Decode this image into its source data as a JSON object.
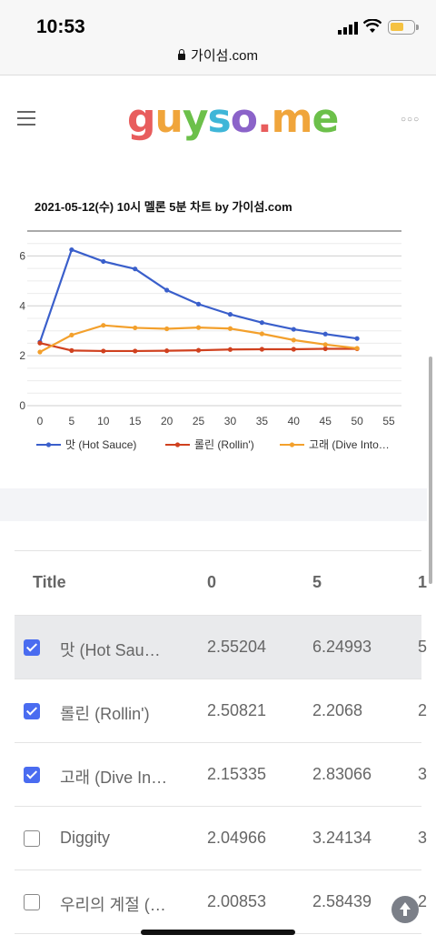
{
  "status": {
    "time": "10:53"
  },
  "browser": {
    "url": "가이섬.com"
  },
  "site": {
    "logo": [
      "g",
      "u",
      "y",
      "s",
      "o",
      ".",
      "m",
      "e"
    ]
  },
  "chart_data": {
    "type": "line",
    "title": "2021-05-12(수) 10시 멜론 5분 차트 by 가이섬.com",
    "xlabel": "",
    "ylabel": "",
    "x": [
      0,
      5,
      10,
      15,
      20,
      25,
      30,
      35,
      40,
      45,
      50
    ],
    "xticks": [
      "0",
      "5",
      "10",
      "15",
      "20",
      "25",
      "30",
      "35",
      "40",
      "45",
      "50",
      "55"
    ],
    "yticks": [
      "0",
      "2",
      "4",
      "6"
    ],
    "xlim": [
      -2,
      57
    ],
    "ylim": [
      0,
      7
    ],
    "grid": true,
    "legend": "bottom",
    "series": [
      {
        "name": "맛 (Hot Sauce)",
        "color": "#3a5fcb",
        "values": [
          2.55,
          6.25,
          5.78,
          5.48,
          4.63,
          4.07,
          3.66,
          3.33,
          3.06,
          2.87,
          2.69
        ]
      },
      {
        "name": "롤린 (Rollin')",
        "color": "#d0411f",
        "values": [
          2.51,
          2.21,
          2.19,
          2.19,
          2.2,
          2.22,
          2.25,
          2.26,
          2.26,
          2.28,
          2.28
        ]
      },
      {
        "name": "고래 (Dive Into…",
        "color": "#f3a02c",
        "values": [
          2.15,
          2.83,
          3.22,
          3.12,
          3.08,
          3.13,
          3.09,
          2.88,
          2.63,
          2.45,
          2.3
        ]
      }
    ]
  },
  "table": {
    "headers": [
      "Title",
      "0",
      "5",
      "1"
    ],
    "rows": [
      {
        "checked": true,
        "selected": true,
        "title": "맛 (Hot Sau…",
        "v0": "2.55204",
        "v5": "6.24993",
        "v10": "5"
      },
      {
        "checked": true,
        "selected": false,
        "title": "롤린 (Rollin')",
        "v0": "2.50821",
        "v5": "2.2068",
        "v10": "2"
      },
      {
        "checked": true,
        "selected": false,
        "title": "고래 (Dive In…",
        "v0": "2.15335",
        "v5": "2.83066",
        "v10": "3"
      },
      {
        "checked": false,
        "selected": false,
        "title": "Diggity",
        "v0": "2.04966",
        "v5": "3.24134",
        "v10": "3"
      },
      {
        "checked": false,
        "selected": false,
        "title": "우리의 계절 (…",
        "v0": "2.00853",
        "v5": "2.58439",
        "v10": "2"
      }
    ]
  }
}
